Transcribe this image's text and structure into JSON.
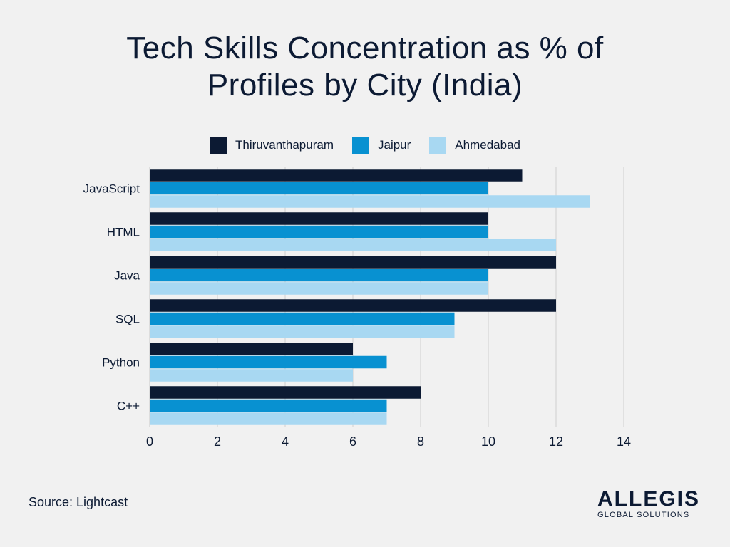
{
  "title_lines": [
    "Tech Skills Concentration as % of",
    "Profiles by City (India)"
  ],
  "legend": [
    {
      "label": "Thiruvanthapuram",
      "color": "#0c1a33"
    },
    {
      "label": "Jaipur",
      "color": "#0891d1"
    },
    {
      "label": "Ahmedabad",
      "color": "#a8d8f2"
    }
  ],
  "source": "Source: Lightcast",
  "logo": {
    "main": "ALLEGIS",
    "sub": "GLOBAL SOLUTIONS"
  },
  "chart_data": {
    "type": "bar",
    "orientation": "horizontal",
    "title": "Tech Skills Concentration as % of Profiles by City (India)",
    "categories": [
      "JavaScript",
      "HTML",
      "Java",
      "SQL",
      "Python",
      "C++"
    ],
    "series": [
      {
        "name": "Thiruvanthapuram",
        "color": "#0c1a33",
        "values": [
          11,
          10,
          12,
          12,
          6,
          8
        ]
      },
      {
        "name": "Jaipur",
        "color": "#0891d1",
        "values": [
          10,
          10,
          10,
          9,
          7,
          7
        ]
      },
      {
        "name": "Ahmedabad",
        "color": "#a8d8f2",
        "values": [
          13,
          12,
          10,
          9,
          6,
          7
        ]
      }
    ],
    "xticks": [
      0,
      2,
      4,
      6,
      8,
      10,
      12,
      14
    ],
    "xlim": [
      0,
      14
    ],
    "xlabel": "",
    "ylabel": "",
    "grid": true,
    "legend_position": "top"
  }
}
